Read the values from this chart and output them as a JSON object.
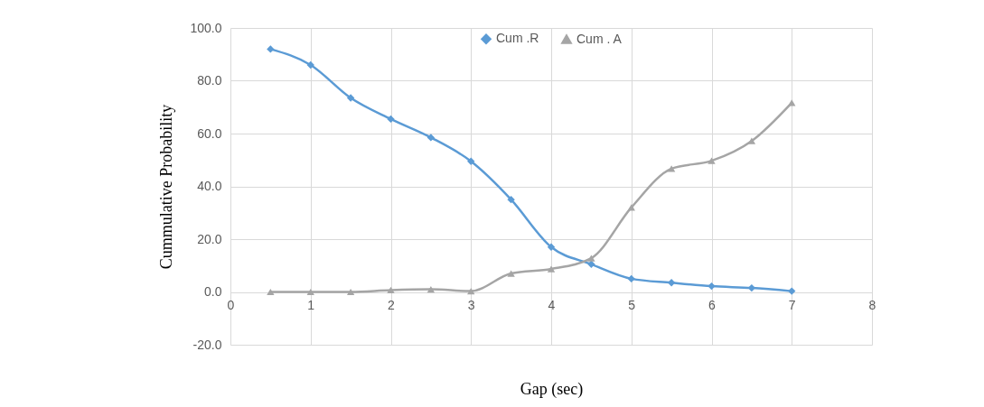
{
  "chart_data": {
    "type": "line",
    "xlabel": "Gap (sec)",
    "ylabel": "Cummulative Probability",
    "x": [
      0.5,
      1,
      1.5,
      2,
      2.5,
      3,
      3.5,
      4,
      4.5,
      5,
      5.5,
      6,
      6.5,
      7
    ],
    "series": [
      {
        "name": "Cum .R",
        "color": "#5b9bd5",
        "marker": "diamond",
        "values": [
          92,
          86,
          73.5,
          65.5,
          58.5,
          49.5,
          35,
          17,
          10.5,
          5,
          3.5,
          2.2,
          1.5,
          0.3
        ]
      },
      {
        "name": "Cum . A",
        "color": "#a5a5a5",
        "marker": "triangle",
        "values": [
          0,
          0,
          0,
          0.7,
          1,
          0.3,
          7,
          8.7,
          12.8,
          32,
          46.7,
          49.7,
          57.2,
          71.7
        ]
      }
    ],
    "xlim": [
      0,
      8
    ],
    "xticks": [
      0,
      1,
      2,
      3,
      4,
      5,
      6,
      7,
      8
    ],
    "ylim": [
      -20,
      100
    ],
    "yticks": [
      {
        "value": -20,
        "label": "-20.0"
      },
      {
        "value": 0,
        "label": "0.0"
      },
      {
        "value": 20,
        "label": "20.0"
      },
      {
        "value": 40,
        "label": "40.0"
      },
      {
        "value": 60,
        "label": "60.0"
      },
      {
        "value": 80,
        "label": "80.0"
      },
      {
        "value": 100,
        "label": "100.0"
      }
    ],
    "grid": true,
    "legend": "top",
    "line_style": "solid"
  }
}
